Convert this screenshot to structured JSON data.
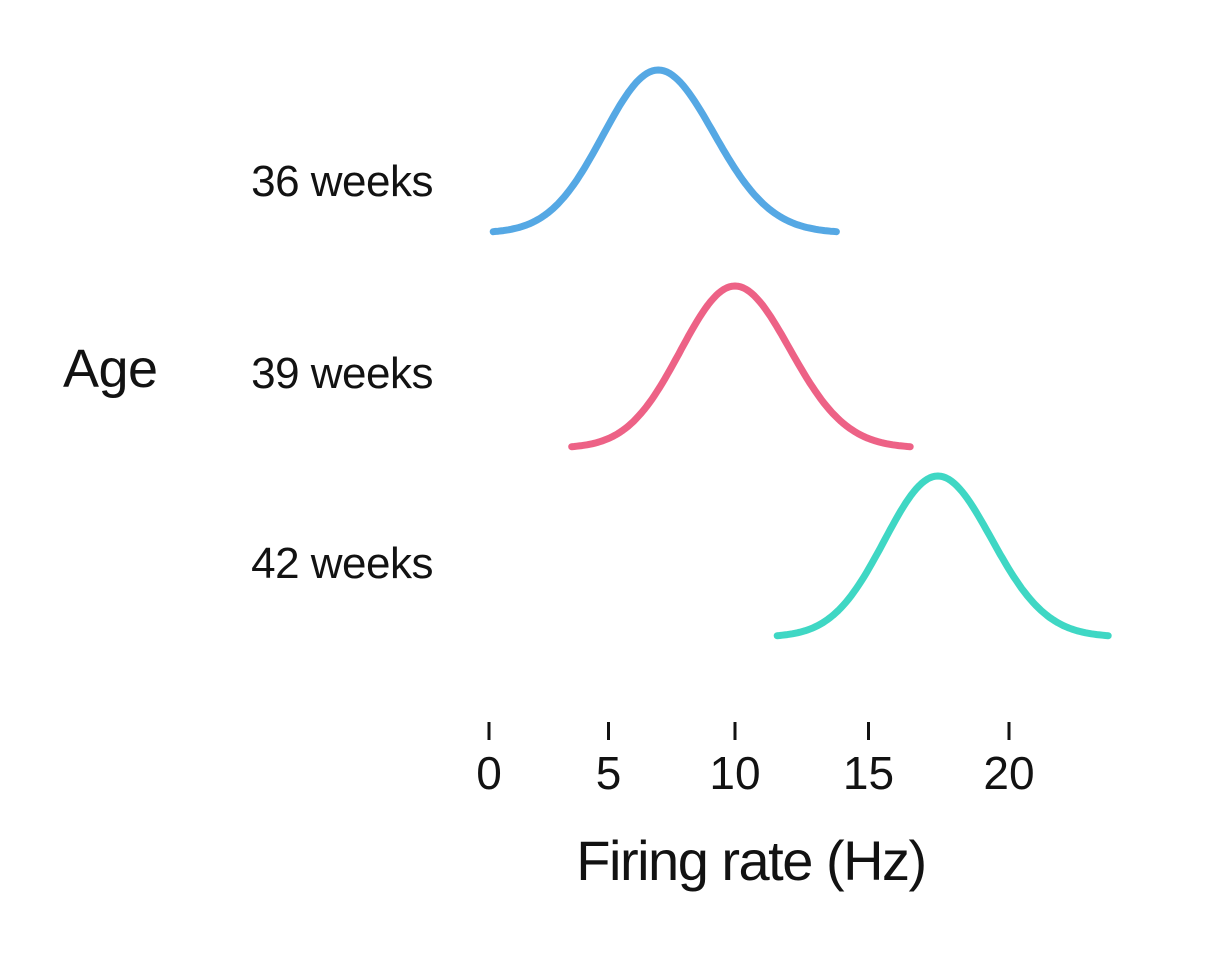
{
  "chart_data": {
    "type": "line",
    "subtype": "ridgeline-density-curves",
    "title": "",
    "xlabel": "Firing rate (Hz)",
    "ylabel": "Age",
    "x_ticks": [
      0,
      5,
      10,
      15,
      20
    ],
    "x_tick_labels": [
      "0",
      "5",
      "10",
      "15",
      "20"
    ],
    "xlim": [
      0,
      23.5
    ],
    "grid": false,
    "legend": "none",
    "text_color": "#121212",
    "categories": [
      "36 weeks",
      "39 weeks",
      "42 weeks"
    ],
    "series": [
      {
        "label": "36 weeks",
        "color": "#55a8e4",
        "peak_hz": 7,
        "sd_hz": 2.2,
        "peak_height_rel": 1
      },
      {
        "label": "39 weeks",
        "color": "#ed6286",
        "peak_hz": 10,
        "sd_hz": 2.1,
        "peak_height_rel": 1
      },
      {
        "label": "42 weeks",
        "color": "#3fd7c4",
        "peak_hz": 17.5,
        "sd_hz": 1.9,
        "peak_height_rel": 1
      }
    ]
  }
}
